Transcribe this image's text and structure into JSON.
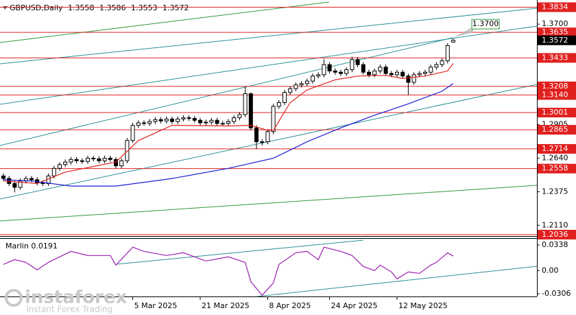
{
  "chart_data": [
    {
      "type": "candlestick",
      "title": "GBPUSD,Daily",
      "categories": [
        null,
        null,
        null,
        null,
        null,
        null,
        null,
        null,
        null,
        null,
        null,
        null,
        null,
        null,
        null,
        null,
        null,
        null,
        null,
        null,
        null,
        null,
        null,
        "5 Mar 2025",
        null,
        null,
        null,
        null,
        null,
        null,
        null,
        null,
        null,
        null,
        null,
        "21 Mar 2025",
        null,
        null,
        null,
        null,
        null,
        null,
        null,
        null,
        null,
        null,
        null,
        "8 Apr 2025",
        null,
        null,
        null,
        null,
        null,
        null,
        null,
        null,
        null,
        null,
        "24 Apr 2025",
        null,
        null,
        null,
        null,
        null,
        null,
        null,
        null,
        null,
        null,
        null,
        "12 May 2025",
        null,
        null,
        null,
        null,
        null,
        null,
        null,
        null,
        null,
        null
      ],
      "open": [
        1.25,
        1.248,
        1.244,
        1.241,
        1.246,
        1.248,
        1.247,
        1.2445,
        1.244,
        1.25,
        1.256,
        1.259,
        1.261,
        1.263,
        1.262,
        1.2615,
        1.264,
        1.2635,
        1.262,
        1.264,
        1.263,
        1.258,
        1.262,
        1.278,
        1.29,
        1.292,
        1.2915,
        1.293,
        1.2945,
        1.2935,
        1.295,
        1.293,
        1.295,
        1.296,
        1.2955,
        1.294,
        1.292,
        1.2925,
        1.294,
        1.2915,
        1.2915,
        1.293,
        1.296,
        1.2985,
        1.315,
        1.288,
        1.277,
        1.277,
        1.285,
        1.305,
        1.308,
        1.316,
        1.319,
        1.322,
        1.323,
        1.325,
        1.329,
        1.33,
        1.338,
        1.333,
        1.332,
        1.331,
        1.334,
        1.342,
        1.338,
        1.332,
        1.33,
        1.333,
        1.336,
        1.331,
        1.33,
        1.332,
        1.329,
        1.324,
        1.33,
        1.331,
        1.332,
        1.336,
        1.338,
        1.341,
        1.3558
      ],
      "high": [
        1.252,
        1.25,
        1.246,
        1.248,
        1.25,
        1.25,
        1.249,
        1.2465,
        1.252,
        1.258,
        1.261,
        1.263,
        1.265,
        1.265,
        1.264,
        1.266,
        1.266,
        1.2655,
        1.266,
        1.266,
        1.265,
        1.264,
        1.28,
        1.292,
        1.294,
        1.294,
        1.295,
        1.2965,
        1.2965,
        1.297,
        1.297,
        1.297,
        1.298,
        1.298,
        1.2975,
        1.296,
        1.2945,
        1.296,
        1.296,
        1.2935,
        1.295,
        1.298,
        1.3005,
        1.3208,
        1.316,
        1.29,
        1.279,
        1.287,
        1.307,
        1.31,
        1.318,
        1.321,
        1.324,
        1.325,
        1.327,
        1.331,
        1.332,
        1.3423,
        1.34,
        1.335,
        1.334,
        1.336,
        1.3443,
        1.344,
        1.34,
        1.334,
        1.335,
        1.338,
        1.338,
        1.333,
        1.334,
        1.334,
        1.331,
        1.332,
        1.333,
        1.334,
        1.338,
        1.34,
        1.343,
        1.355,
        1.3586
      ],
      "low": [
        1.246,
        1.242,
        1.237,
        1.239,
        1.244,
        1.245,
        1.2425,
        1.242,
        1.242,
        1.248,
        1.254,
        1.257,
        1.259,
        1.26,
        1.2595,
        1.2595,
        1.2615,
        1.26,
        1.26,
        1.261,
        1.256,
        1.256,
        1.26,
        1.276,
        1.288,
        1.2895,
        1.2895,
        1.291,
        1.2915,
        1.2915,
        1.291,
        1.291,
        1.293,
        1.2935,
        1.292,
        1.29,
        1.29,
        1.2905,
        1.2895,
        1.2895,
        1.2895,
        1.291,
        1.294,
        1.2965,
        1.286,
        1.2714,
        1.274,
        1.275,
        1.283,
        1.303,
        1.306,
        1.314,
        1.317,
        1.32,
        1.321,
        1.323,
        1.327,
        1.328,
        1.331,
        1.33,
        1.329,
        1.329,
        1.332,
        1.336,
        1.33,
        1.328,
        1.328,
        1.331,
        1.329,
        1.328,
        1.328,
        1.327,
        1.314,
        1.322,
        1.328,
        1.329,
        1.33,
        1.334,
        1.336,
        1.339,
        1.3553
      ],
      "close": [
        1.248,
        1.244,
        1.241,
        1.246,
        1.248,
        1.247,
        1.2445,
        1.244,
        1.25,
        1.256,
        1.259,
        1.261,
        1.263,
        1.262,
        1.2615,
        1.264,
        1.2635,
        1.262,
        1.264,
        1.263,
        1.258,
        1.262,
        1.278,
        1.29,
        1.292,
        1.2915,
        1.293,
        1.2945,
        1.2935,
        1.295,
        1.293,
        1.295,
        1.296,
        1.2955,
        1.294,
        1.292,
        1.2925,
        1.294,
        1.2915,
        1.2915,
        1.293,
        1.296,
        1.2985,
        1.315,
        1.288,
        1.277,
        1.277,
        1.285,
        1.305,
        1.308,
        1.316,
        1.319,
        1.322,
        1.323,
        1.325,
        1.329,
        1.33,
        1.338,
        1.333,
        1.332,
        1.331,
        1.334,
        1.342,
        1.338,
        1.332,
        1.33,
        1.333,
        1.336,
        1.331,
        1.33,
        1.332,
        1.329,
        1.324,
        1.33,
        1.331,
        1.332,
        1.336,
        1.338,
        1.341,
        1.353,
        1.3572
      ],
      "color_up": "#ffffff",
      "color_down": "#000000",
      "ylim": [
        1.203,
        1.388
      ],
      "yticks": [
        {
          "value": 1.37,
          "label": "1.3700"
        },
        1.2905,
        {
          "value": 1.264,
          "label": "1.2640"
        },
        1.2375,
        {
          "value": 1.211,
          "label": "1.2110"
        }
      ],
      "levels": [
        1.3834,
        1.3635,
        1.3433,
        1.3208,
        {
          "value": 1.314,
          "label": "1.3140"
        },
        1.3001,
        1.2865,
        1.2714,
        1.2558,
        1.2036
      ],
      "level_color": "#e0201f",
      "target": {
        "value": 1.37,
        "label": "1.3700"
      },
      "lines": [
        {
          "color": "#e0201f",
          "x": [
            0,
            6,
            11,
            20,
            24,
            30,
            40,
            44,
            47,
            48,
            51,
            54,
            59,
            63,
            68,
            71,
            75,
            79,
            80
          ],
          "values": [
            1.246,
            1.244,
            1.253,
            1.261,
            1.278,
            1.29,
            1.2895,
            1.29,
            1.286,
            1.286,
            1.308,
            1.318,
            1.326,
            1.329,
            1.3295,
            1.327,
            1.329,
            1.333,
            1.339
          ]
        },
        {
          "color": "#1a1ad6",
          "x": [
            0,
            5,
            12,
            20,
            30,
            40,
            44,
            48,
            54,
            60,
            66,
            72,
            78,
            80
          ],
          "values": [
            1.247,
            1.246,
            1.242,
            1.242,
            1.248,
            1.256,
            1.26,
            1.264,
            1.277,
            1.288,
            1.298,
            1.307,
            1.317,
            1.323
          ]
        }
      ]
    },
    {
      "type": "line",
      "title": "Marlin 0.0191",
      "color": "#9a1fb0",
      "x": [
        0,
        2,
        4,
        6,
        8,
        12,
        15,
        19,
        20,
        23,
        25,
        29,
        32,
        36,
        40,
        43,
        44,
        46,
        48,
        49,
        52,
        54,
        56,
        57,
        60,
        62,
        64,
        66,
        67,
        69,
        70,
        72,
        74,
        76,
        77,
        79,
        80
      ],
      "values": [
        0.0082,
        0.0145,
        0.0109,
        0.0009,
        0.0109,
        0.0254,
        0.02,
        0.02,
        0.0073,
        0.0309,
        0.0254,
        0.02,
        0.0236,
        0.0127,
        0.0181,
        0.0109,
        -0.0145,
        -0.0327,
        -0.0163,
        0.0082,
        0.0236,
        0.0254,
        0.0145,
        0.0309,
        0.0254,
        0.02,
        0.0054,
        0.0,
        0.0073,
        -0.0018,
        -0.0109,
        -0.0018,
        -0.0036,
        0.0073,
        0.0109,
        0.0236,
        0.0191
      ],
      "ylim": [
        -0.0342,
        0.042
      ],
      "yticks": [
        0.0338,
        {
          "value": 0,
          "label": "0.00"
        },
        -0.0306
      ]
    }
  ],
  "watermark": {
    "brand": "instaforex",
    "tagline": "Instant Forex Trading"
  }
}
